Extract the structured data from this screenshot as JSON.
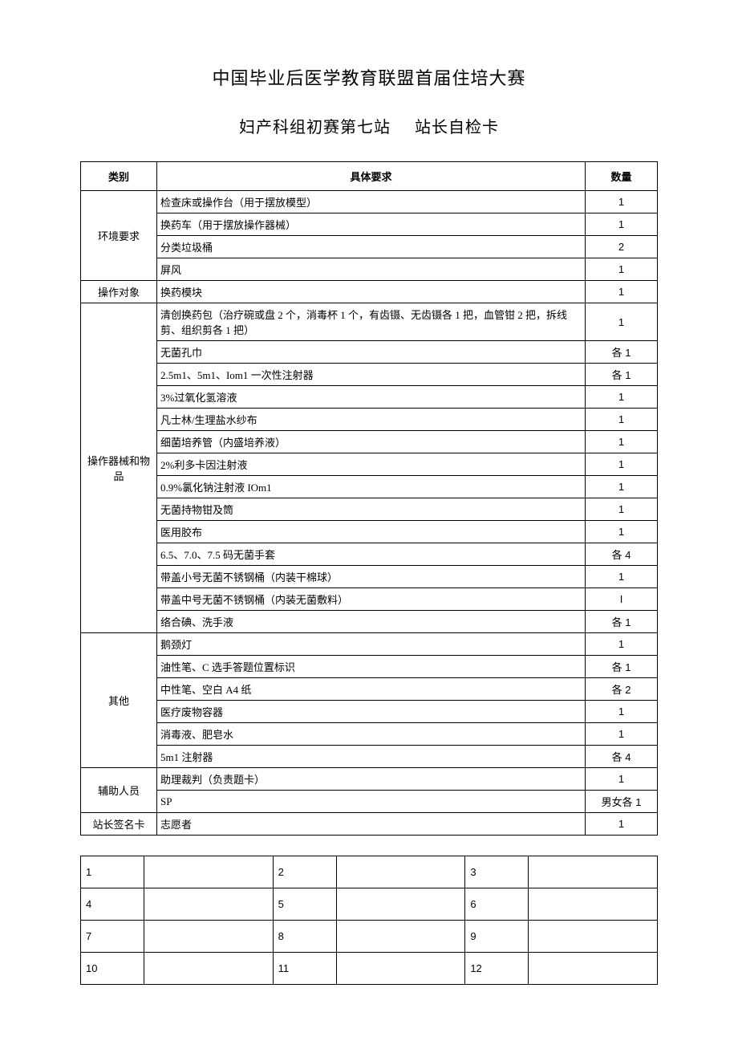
{
  "title_main": "中国毕业后医学教育联盟首届住培大赛",
  "title_sub_left": "妇产科组初赛第七站",
  "title_sub_right": "站长自检卡",
  "headers": {
    "category": "类别",
    "requirement": "具体要求",
    "quantity": "数量"
  },
  "sections": [
    {
      "category": "环境要求",
      "rows": [
        {
          "req": "检查床或操作台（用于摆放模型）",
          "qty": "1"
        },
        {
          "req": "换药车（用于摆放操作器械）",
          "qty": "1"
        },
        {
          "req": "分类垃圾桶",
          "qty": "2"
        },
        {
          "req": "屏风",
          "qty": "1"
        }
      ]
    },
    {
      "category": "操作对象",
      "rows": [
        {
          "req": "换药模块",
          "qty": "1",
          "tall": true
        }
      ]
    },
    {
      "category": "操作器械和物品",
      "rows": [
        {
          "req": "清创换药包（治疗碗或盘 2 个，消毒杯 1 个，有齿镊、无齿镊各 1 把，血管钳 2 把，拆线剪、组织剪各 1 把）",
          "qty": "1",
          "tall": true
        },
        {
          "req": "无菌孔巾",
          "qty": "各 1",
          "tall": true
        },
        {
          "req": "2.5m1、5m1、Iom1 一次性注射器",
          "qty": "各 1",
          "tall": true
        },
        {
          "req": "3%过氧化氢溶液",
          "qty": "1"
        },
        {
          "req": "凡士林/生理盐水纱布",
          "qty": "1"
        },
        {
          "req": "细菌培养管（内盛培养液）",
          "qty": "1"
        },
        {
          "req": "2%利多卡因注射液",
          "qty": "1"
        },
        {
          "req": "0.9%氯化钠注射液 IOm1",
          "qty": "1"
        },
        {
          "req": "无菌持物钳及筒",
          "qty": "1"
        },
        {
          "req": "医用胶布",
          "qty": "1"
        },
        {
          "req": "6.5、7.0、7.5 码无菌手套",
          "qty": "各 4"
        },
        {
          "req": "带盖小号无菌不锈钢桶（内装干棉球）",
          "qty": "1"
        },
        {
          "req": "带盖中号无菌不锈钢桶（内装无菌敷料）",
          "qty": "I"
        },
        {
          "req": "络合碘、洗手液",
          "qty": "各 1"
        }
      ]
    },
    {
      "category": "其他",
      "rows": [
        {
          "req": "鹅颈灯",
          "qty": "1"
        },
        {
          "req": "油性笔、C 选手答题位置标识",
          "qty": "各 1"
        },
        {
          "req": "中性笔、空白 A4 纸",
          "qty": "各 2"
        },
        {
          "req": "医疗废物容器",
          "qty": "1"
        },
        {
          "req": "消毒液、肥皂水",
          "qty": "1"
        },
        {
          "req": "5m1 注射器",
          "qty": "各 4"
        }
      ]
    },
    {
      "category": "辅助人员",
      "rows": [
        {
          "req": "助理裁判（负责题卡）",
          "qty": "1"
        },
        {
          "req": "SP",
          "qty": "男女各 1"
        }
      ]
    },
    {
      "category": "站长签名卡",
      "rows": [
        {
          "req": "志愿者",
          "qty": "1"
        }
      ]
    }
  ],
  "sign_grid": [
    [
      "1",
      "2",
      "3"
    ],
    [
      "4",
      "5",
      "6"
    ],
    [
      "7",
      "8",
      "9"
    ],
    [
      "10",
      "11",
      "12"
    ]
  ],
  "colors": {
    "text": "#000000",
    "border": "#000000",
    "background": "#ffffff"
  },
  "fonts": {
    "body_family": "SimSun",
    "title_size_pt": 16,
    "body_size_pt": 10
  }
}
